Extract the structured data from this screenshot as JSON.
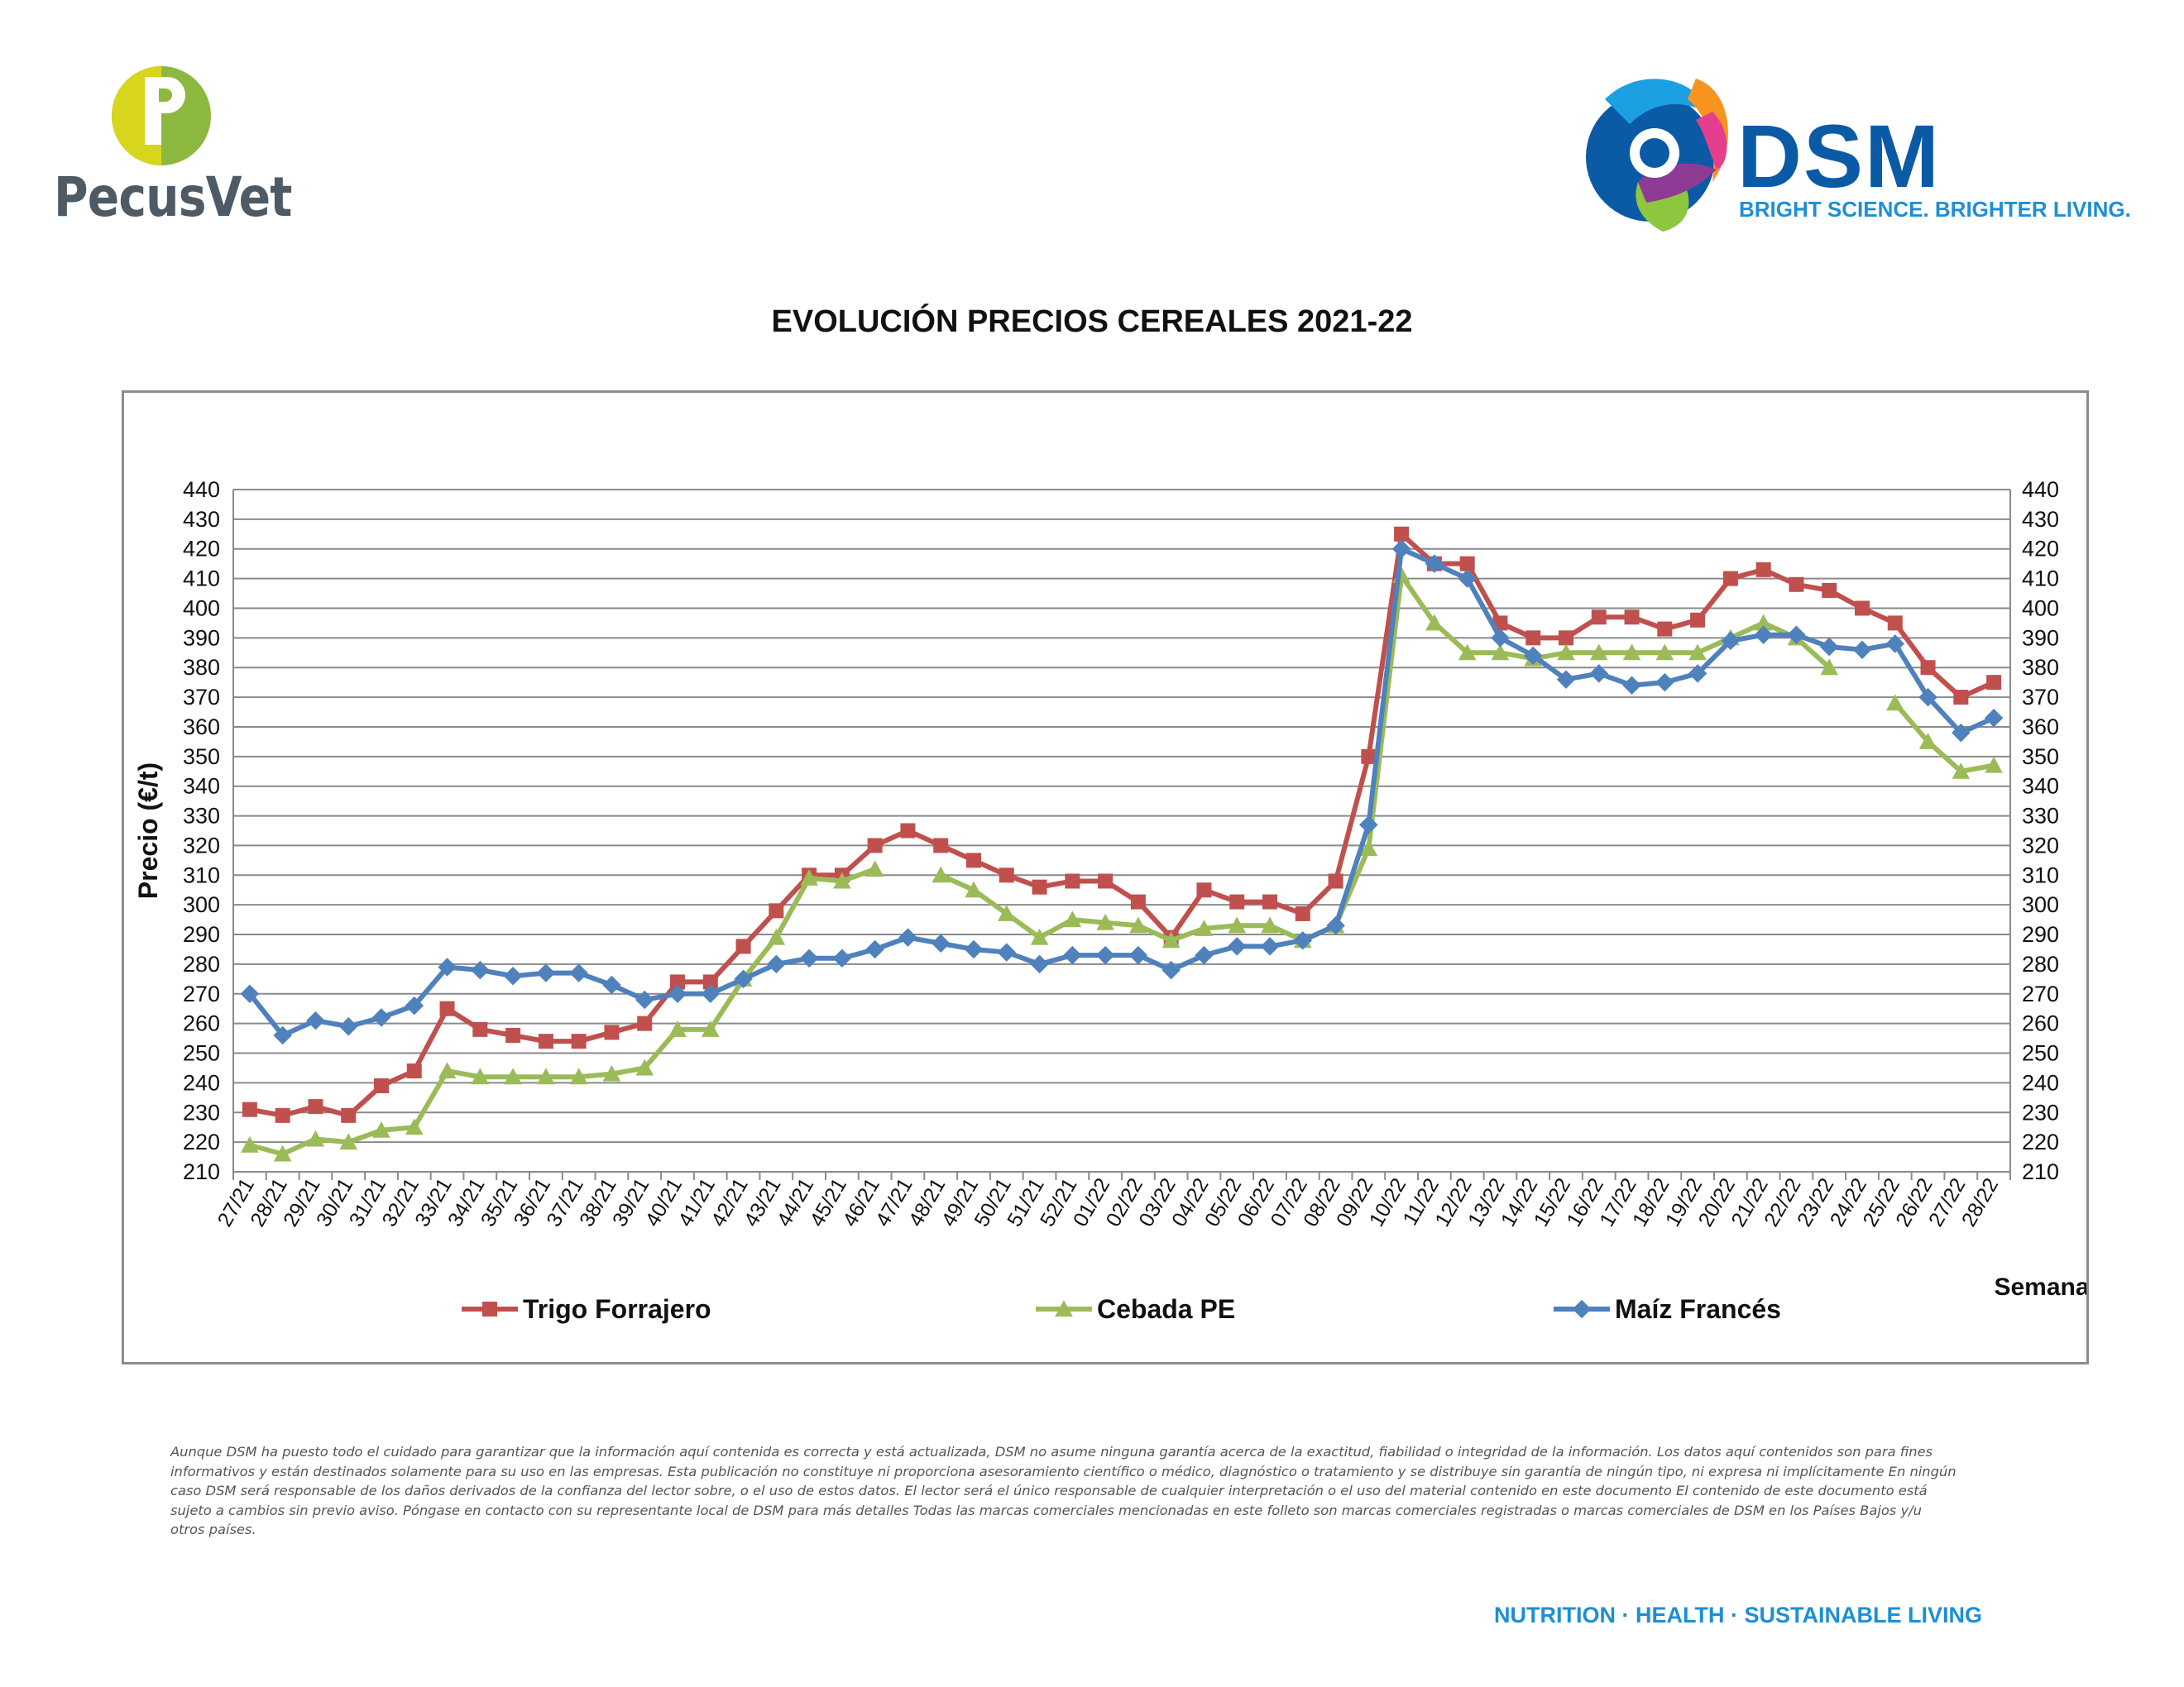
{
  "logos": {
    "pecusvet": {
      "text": "PecusVet",
      "mark_letter": "P",
      "colors": {
        "green": "#8db83f",
        "yellow": "#d7d61c",
        "text": "#4e5a64"
      }
    },
    "dsm": {
      "word": "DSM",
      "tagline": "BRIGHT SCIENCE. BRIGHTER LIVING.",
      "colors": {
        "word": "#0b5aa6",
        "tagline": "#1d8fd6"
      }
    }
  },
  "footer": {
    "disclaimer": "Aunque DSM ha puesto todo el cuidado para garantizar que la información aquí contenida es correcta y está actualizada, DSM no asume ninguna garantía acerca de la exactitud, fiabilidad o integridad de la información. Los datos aquí contenidos son para fines informativos y están destinados solamente para su uso en las empresas. Esta publicación no constituye ni proporciona asesoramiento científico o médico, diagnóstico o tratamiento y se distribuye sin garantía de ningún tipo, ni expresa ni implícitamente En ningún caso DSM será responsable de los daños derivados de la confianza del lector sobre, o el uso de estos datos. El lector será el único responsable de cualquier interpretación o el uso del material contenido en este documento El contenido de este documento está sujeto a cambios sin previo aviso. Póngase en contacto con su representante local de DSM para más detalles Todas las marcas comerciales mencionadas en este folleto son marcas comerciales registradas o marcas comerciales de DSM en los Países Bajos y/u otros países.",
    "tagline": "NUTRITION · HEALTH · SUSTAINABLE LIVING"
  },
  "chart_data": {
    "type": "line",
    "title": "EVOLUCIÓN PRECIOS CEREALES 2021-22",
    "ylabel": "Precio (€/t)",
    "xlabel": "Semana",
    "ylim": [
      210,
      440
    ],
    "ytick_step": 10,
    "grid": true,
    "secondary_y_axis_mirror": true,
    "legend_position": "bottom",
    "categories": [
      "27/21",
      "28/21",
      "29/21",
      "30/21",
      "31/21",
      "32/21",
      "33/21",
      "34/21",
      "35/21",
      "36/21",
      "37/21",
      "38/21",
      "39/21",
      "40/21",
      "41/21",
      "42/21",
      "43/21",
      "44/21",
      "45/21",
      "46/21",
      "47/21",
      "48/21",
      "49/21",
      "50/21",
      "51/21",
      "52/21",
      "01/22",
      "02/22",
      "03/22",
      "04/22",
      "05/22",
      "06/22",
      "07/22",
      "08/22",
      "09/22",
      "10/22",
      "11/22",
      "12/22",
      "13/22",
      "14/22",
      "15/22",
      "16/22",
      "17/22",
      "18/22",
      "19/22",
      "20/22",
      "21/22",
      "22/22",
      "23/22",
      "24/22",
      "25/22",
      "26/22",
      "27/22",
      "28/22"
    ],
    "series": [
      {
        "name": "Trigo Forrajero",
        "color": "#c0504d",
        "marker": "square",
        "values": [
          231,
          229,
          232,
          229,
          239,
          244,
          265,
          258,
          256,
          254,
          254,
          257,
          260,
          274,
          274,
          286,
          298,
          310,
          310,
          320,
          325,
          320,
          315,
          310,
          306,
          308,
          308,
          301,
          289,
          305,
          301,
          301,
          297,
          308,
          350,
          425,
          415,
          415,
          395,
          390,
          390,
          397,
          397,
          393,
          396,
          410,
          413,
          408,
          406,
          400,
          395,
          380,
          370,
          375
        ]
      },
      {
        "name": "Cebada PE",
        "color": "#9bbb59",
        "marker": "triangle",
        "values": [
          219,
          216,
          221,
          220,
          224,
          225,
          244,
          242,
          242,
          242,
          242,
          243,
          245,
          258,
          258,
          275,
          289,
          309,
          308,
          312,
          null,
          310,
          305,
          297,
          289,
          295,
          294,
          293,
          288,
          292,
          293,
          293,
          288,
          293,
          319,
          411,
          395,
          385,
          385,
          383,
          385,
          385,
          385,
          385,
          385,
          390,
          395,
          390,
          380,
          null,
          368,
          355,
          345,
          347
        ]
      },
      {
        "name": "Maíz Francés",
        "color": "#4f81bd",
        "marker": "diamond",
        "values": [
          270,
          256,
          261,
          259,
          262,
          266,
          279,
          278,
          276,
          277,
          277,
          273,
          268,
          270,
          270,
          275,
          280,
          282,
          282,
          285,
          289,
          287,
          285,
          284,
          280,
          283,
          283,
          283,
          278,
          283,
          286,
          286,
          288,
          293,
          327,
          420,
          415,
          410,
          390,
          384,
          376,
          378,
          374,
          375,
          378,
          389,
          391,
          391,
          387,
          386,
          388,
          370,
          358,
          363
        ]
      }
    ]
  }
}
